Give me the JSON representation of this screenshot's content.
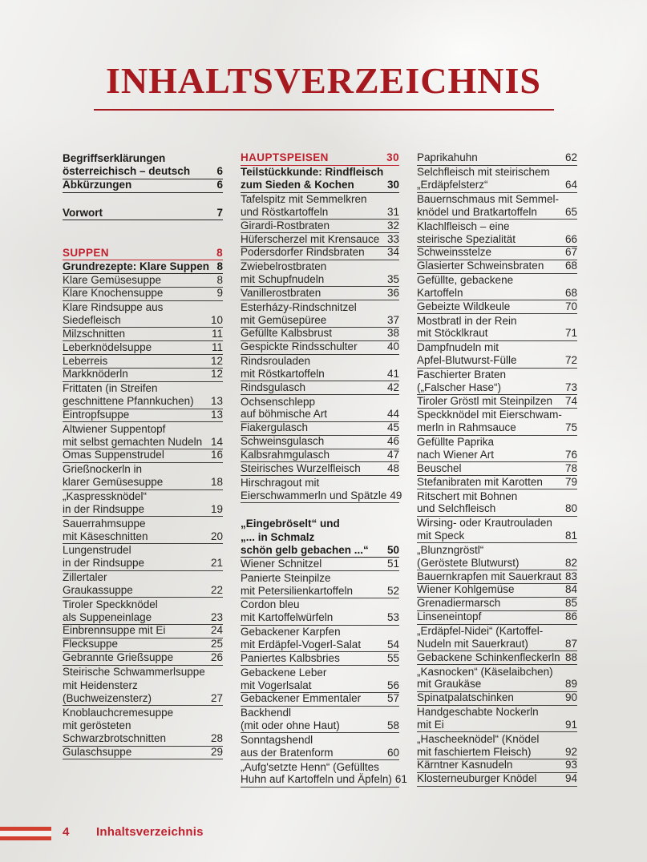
{
  "page": {
    "title": "INHALTSVERZEICHNIS",
    "footer": {
      "page_number": "4",
      "label": "Inhaltsverzeichnis"
    },
    "colors": {
      "title_red": "#a6191f",
      "accent_red": "#c1202d",
      "flag_red": "#d2402f",
      "text": "#262522",
      "rule_dark": "#3b3a37"
    },
    "icons": {
      "footer_flag": "austria-flag-stripes"
    }
  },
  "toc": {
    "columns": [
      {
        "items": [
          {
            "style": "bold",
            "lines": [
              "Begriffserklärungen",
              "österreichisch – deutsch"
            ],
            "page": "6"
          },
          {
            "style": "bold",
            "lines": [
              "Abkürzungen"
            ],
            "page": "6"
          },
          {
            "style": "gap",
            "h": 18
          },
          {
            "style": "bold",
            "lines": [
              "Vorwort"
            ],
            "page": "7"
          },
          {
            "style": "gap",
            "h": 33
          },
          {
            "style": "section",
            "lines": [
              "SUPPEN"
            ],
            "page": "8"
          },
          {
            "style": "bold",
            "lines": [
              "Grundrezepte: Klare Suppen"
            ],
            "page": "8"
          },
          {
            "style": "normal",
            "lines": [
              "Klare Gemüsesuppe"
            ],
            "page": "8"
          },
          {
            "style": "normal",
            "lines": [
              "Klare Knochensuppe"
            ],
            "page": "9"
          },
          {
            "style": "normal",
            "lines": [
              "Klare Rindsuppe aus",
              "Siedefleisch"
            ],
            "page": "10"
          },
          {
            "style": "normal",
            "lines": [
              "Milzschnitten"
            ],
            "page": "11"
          },
          {
            "style": "normal",
            "lines": [
              "Leberknödelsuppe"
            ],
            "page": "11"
          },
          {
            "style": "normal",
            "lines": [
              "Leberreis"
            ],
            "page": "12"
          },
          {
            "style": "normal",
            "lines": [
              "Markknöderln"
            ],
            "page": "12"
          },
          {
            "style": "normal",
            "lines": [
              "Frittaten (in Streifen",
              "geschnittene Pfannkuchen)"
            ],
            "page": "13"
          },
          {
            "style": "normal",
            "lines": [
              "Eintropfsuppe"
            ],
            "page": "13"
          },
          {
            "style": "normal",
            "lines": [
              "Altwiener Suppentopf",
              "mit selbst gemachten Nudeln"
            ],
            "page": "14"
          },
          {
            "style": "normal",
            "lines": [
              "Omas Suppenstrudel"
            ],
            "page": "16"
          },
          {
            "style": "normal",
            "lines": [
              "Grießnockerln in",
              "klarer Gemüsesuppe"
            ],
            "page": "18"
          },
          {
            "style": "normal",
            "lines": [
              "„Kaspressknödel“",
              "in der Rindsuppe"
            ],
            "page": "19"
          },
          {
            "style": "normal",
            "lines": [
              "Sauerrahmsuppe",
              "mit Käseschnitten"
            ],
            "page": "20"
          },
          {
            "style": "normal",
            "lines": [
              "Lungenstrudel",
              "in der Rindsuppe"
            ],
            "page": "21"
          },
          {
            "style": "normal",
            "lines": [
              "Zillertaler",
              "Graukassuppe"
            ],
            "page": "22"
          },
          {
            "style": "normal",
            "lines": [
              "Tiroler Speckknödel",
              "als Suppeneinlage"
            ],
            "page": "23"
          },
          {
            "style": "normal",
            "lines": [
              "Einbrennsuppe mit Ei"
            ],
            "page": "24"
          },
          {
            "style": "normal",
            "lines": [
              "Flecksuppe"
            ],
            "page": "25"
          },
          {
            "style": "normal",
            "lines": [
              "Gebrannte Grießsuppe"
            ],
            "page": "26"
          },
          {
            "style": "normal",
            "lines": [
              "Steirische Schwammerlsuppe",
              "mit Heidensterz",
              "(Buchweizensterz)"
            ],
            "page": "27"
          },
          {
            "style": "normal",
            "lines": [
              "Knoblauchcremesuppe",
              "mit gerösteten",
              "Schwarzbrotschnitten"
            ],
            "page": "28"
          },
          {
            "style": "normal",
            "lines": [
              "Gulaschsuppe"
            ],
            "page": "29"
          }
        ]
      },
      {
        "items": [
          {
            "style": "section",
            "lines": [
              "HAUPTSPEISEN"
            ],
            "page": "30"
          },
          {
            "style": "bold",
            "lines": [
              "Teilstückkunde: Rindfleisch",
              "zum Sieden & Kochen"
            ],
            "page": "30"
          },
          {
            "style": "normal",
            "lines": [
              "Tafelspitz mit Semmelkren",
              "und Röstkartoffeln"
            ],
            "page": "31"
          },
          {
            "style": "normal",
            "lines": [
              "Girardi-Rostbraten"
            ],
            "page": "32"
          },
          {
            "style": "normal",
            "lines": [
              "Hüferscherzel mit Krensauce"
            ],
            "page": "33"
          },
          {
            "style": "normal",
            "lines": [
              "Podersdorfer Rindsbraten"
            ],
            "page": "34"
          },
          {
            "style": "normal",
            "lines": [
              "Zwiebelrostbraten",
              "mit Schupfnudeln"
            ],
            "page": "35"
          },
          {
            "style": "normal",
            "lines": [
              "Vanillerostbraten"
            ],
            "page": "36"
          },
          {
            "style": "normal",
            "lines": [
              "Esterházy-Rindschnitzel",
              "mit Gemüsepüree"
            ],
            "page": "37"
          },
          {
            "style": "normal",
            "lines": [
              "Gefüllte Kalbsbrust"
            ],
            "page": "38"
          },
          {
            "style": "normal",
            "lines": [
              "Gespickte Rindsschulter"
            ],
            "page": "40"
          },
          {
            "style": "normal",
            "lines": [
              "Rindsrouladen",
              "mit Röstkartoffeln"
            ],
            "page": "41"
          },
          {
            "style": "normal",
            "lines": [
              "Rindsgulasch"
            ],
            "page": "42"
          },
          {
            "style": "normal",
            "lines": [
              "Ochsenschlepp",
              "auf böhmische Art"
            ],
            "page": "44"
          },
          {
            "style": "normal",
            "lines": [
              "Fiakergulasch"
            ],
            "page": "45"
          },
          {
            "style": "normal",
            "lines": [
              "Schweinsgulasch"
            ],
            "page": "46"
          },
          {
            "style": "normal",
            "lines": [
              "Kalbsrahmgulasch"
            ],
            "page": "47"
          },
          {
            "style": "normal",
            "lines": [
              "Steirisches Wurzelfleisch"
            ],
            "page": "48"
          },
          {
            "style": "normal",
            "lines": [
              "Hirschragout mit",
              "Eierschwammerln und Spätzle"
            ],
            "page": "49"
          },
          {
            "style": "gap",
            "h": 18
          },
          {
            "style": "bold",
            "lines": [
              "„Eingebröselt“ und",
              "„... in Schmalz",
              "schön gelb gebachen ...“"
            ],
            "page": "50"
          },
          {
            "style": "normal",
            "lines": [
              "Wiener Schnitzel"
            ],
            "page": "51"
          },
          {
            "style": "normal",
            "lines": [
              "Panierte Steinpilze",
              "mit Petersilienkartoffeln"
            ],
            "page": "52"
          },
          {
            "style": "normal",
            "lines": [
              "Cordon bleu",
              "mit Kartoffelwürfeln"
            ],
            "page": "53"
          },
          {
            "style": "normal",
            "lines": [
              "Gebackener Karpfen",
              "mit Erdäpfel-Vogerl-Salat"
            ],
            "page": "54"
          },
          {
            "style": "normal",
            "lines": [
              "Paniertes Kalbsbries"
            ],
            "page": "55"
          },
          {
            "style": "normal",
            "lines": [
              "Gebackene Leber",
              "mit Vogerlsalat"
            ],
            "page": "56"
          },
          {
            "style": "normal",
            "lines": [
              "Gebackener Emmentaler"
            ],
            "page": "57"
          },
          {
            "style": "normal",
            "lines": [
              "Backhendl",
              "(mit oder ohne Haut)"
            ],
            "page": "58"
          },
          {
            "style": "normal",
            "lines": [
              "Sonntagshendl",
              "aus der Bratenform"
            ],
            "page": "60"
          },
          {
            "style": "normal",
            "lines": [
              "„Aufg'setzte Henn“ (Gefülltes",
              "Huhn auf Kartoffeln und Äpfeln)"
            ],
            "page": "61"
          }
        ]
      },
      {
        "items": [
          {
            "style": "normal",
            "lines": [
              "Paprikahuhn"
            ],
            "page": "62"
          },
          {
            "style": "normal",
            "lines": [
              "Selchfleisch mit steirischem",
              "„Erdäpfelsterz“"
            ],
            "page": "64"
          },
          {
            "style": "normal",
            "lines": [
              "Bauernschmaus mit Semmel-",
              "knödel und Bratkartoffeln"
            ],
            "page": "65"
          },
          {
            "style": "normal",
            "lines": [
              "Klachlfleisch – eine",
              "steirische Spezialität"
            ],
            "page": "66"
          },
          {
            "style": "normal",
            "lines": [
              "Schweinsstelze"
            ],
            "page": "67"
          },
          {
            "style": "normal",
            "lines": [
              "Glasierter Schweinsbraten"
            ],
            "page": "68"
          },
          {
            "style": "normal",
            "lines": [
              "Gefüllte, gebackene",
              "Kartoffeln"
            ],
            "page": "68"
          },
          {
            "style": "normal",
            "lines": [
              "Gebeizte Wildkeule"
            ],
            "page": "70"
          },
          {
            "style": "normal",
            "lines": [
              "Mostbratl in der Rein",
              "mit Stöcklkraut"
            ],
            "page": "71"
          },
          {
            "style": "normal",
            "lines": [
              "Dampfnudeln mit",
              "Apfel-Blutwurst-Fülle"
            ],
            "page": "72"
          },
          {
            "style": "normal",
            "lines": [
              "Faschierter Braten",
              "(„Falscher Hase“)"
            ],
            "page": "73"
          },
          {
            "style": "normal",
            "lines": [
              "Tiroler Gröstl mit Steinpilzen"
            ],
            "page": "74"
          },
          {
            "style": "normal",
            "lines": [
              "Speckknödel mit Eierschwam-",
              "merln in Rahmsauce"
            ],
            "page": "75"
          },
          {
            "style": "normal",
            "lines": [
              "Gefüllte Paprika",
              "nach Wiener Art"
            ],
            "page": "76"
          },
          {
            "style": "normal",
            "lines": [
              "Beuschel"
            ],
            "page": "78"
          },
          {
            "style": "normal",
            "lines": [
              "Stefanibraten mit Karotten"
            ],
            "page": "79"
          },
          {
            "style": "normal",
            "lines": [
              "Ritschert mit Bohnen",
              "und Selchfleisch"
            ],
            "page": "80"
          },
          {
            "style": "normal",
            "lines": [
              "Wirsing- oder Krautrouladen",
              "mit Speck"
            ],
            "page": "81"
          },
          {
            "style": "normal",
            "lines": [
              "„Blunzngröstl“",
              "(Geröstete Blutwurst)"
            ],
            "page": "82"
          },
          {
            "style": "normal",
            "lines": [
              "Bauernkrapfen mit Sauerkraut"
            ],
            "page": "83"
          },
          {
            "style": "normal",
            "lines": [
              "Wiener Kohlgemüse"
            ],
            "page": "84"
          },
          {
            "style": "normal",
            "lines": [
              "Grenadiermarsch"
            ],
            "page": "85"
          },
          {
            "style": "normal",
            "lines": [
              "Linseneintopf"
            ],
            "page": "86"
          },
          {
            "style": "normal",
            "lines": [
              "„Erdäpfel-Nidei“ (Kartoffel-",
              "Nudeln mit Sauerkraut)"
            ],
            "page": "87"
          },
          {
            "style": "normal",
            "lines": [
              "Gebackene Schinkenfleckerln"
            ],
            "page": "88"
          },
          {
            "style": "normal",
            "lines": [
              "„Kasnocken“ (Käselaibchen)",
              "mit Graukäse"
            ],
            "page": "89"
          },
          {
            "style": "normal",
            "lines": [
              "Spinatpalatschinken"
            ],
            "page": "90"
          },
          {
            "style": "normal",
            "lines": [
              "Handgeschabte Nockerln",
              "mit Ei"
            ],
            "page": "91"
          },
          {
            "style": "normal",
            "lines": [
              "„Hascheeknödel“ (Knödel",
              "mit faschiertem Fleisch)"
            ],
            "page": "92"
          },
          {
            "style": "normal",
            "lines": [
              "Kärntner Kasnudeln"
            ],
            "page": "93"
          },
          {
            "style": "normal",
            "lines": [
              "Klosterneuburger Knödel"
            ],
            "page": "94"
          }
        ]
      }
    ]
  }
}
